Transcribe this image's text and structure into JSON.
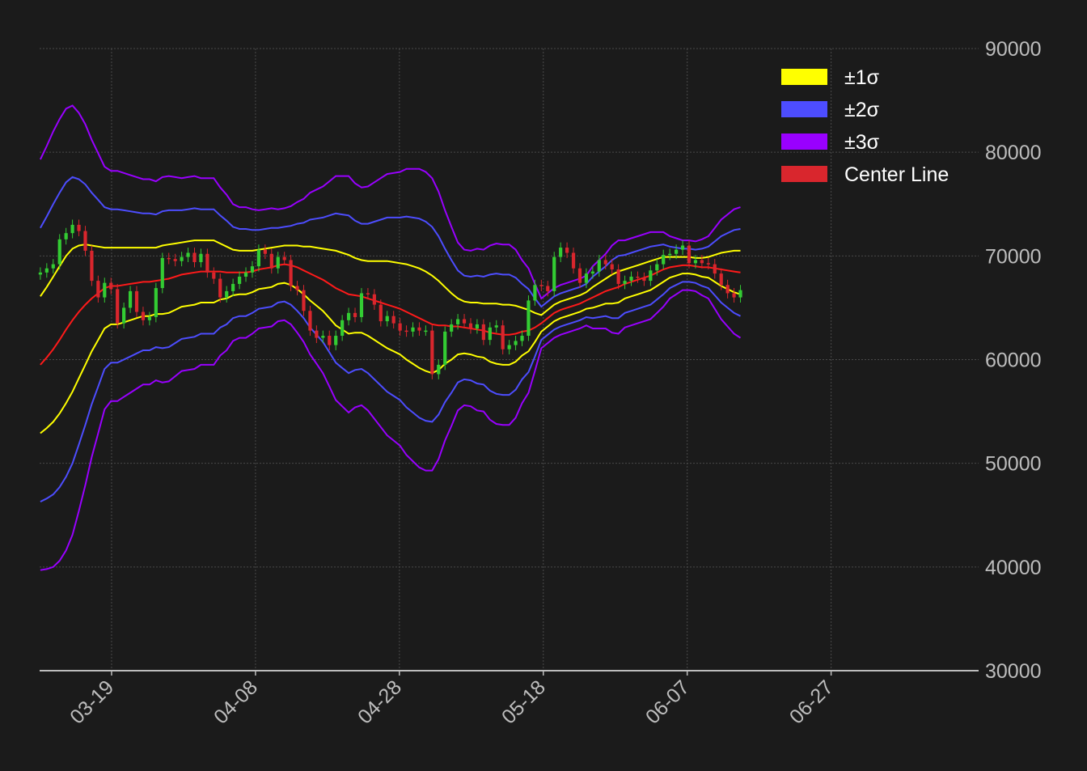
{
  "chart_data": {
    "type": "candlestick",
    "title": "",
    "xlabel": "",
    "ylabel": "",
    "y_axis_position": "right",
    "ylim": [
      30000,
      90000
    ],
    "yticks": [
      30000,
      40000,
      50000,
      60000,
      70000,
      80000,
      90000
    ],
    "ytick_labels": [
      "30000",
      "40000",
      "50000",
      "60000",
      "70000",
      "80000",
      "90000"
    ],
    "xlim": [
      "03-09",
      "07-12"
    ],
    "xtick_labels": [
      "03-19",
      "04-08",
      "04-28",
      "05-18",
      "06-07",
      "06-27"
    ],
    "xtick_days_from_start": [
      10,
      30,
      50,
      70,
      90,
      110
    ],
    "x_day_range": [
      0,
      130.5
    ],
    "grid": true,
    "legend_position": "top-right",
    "colors": {
      "up": "#33cc33",
      "down": "#d9262d",
      "band1": "#ffff00",
      "band2": "#4d4dff",
      "band3": "#9900ff",
      "center": "#ff1a1a",
      "background": "#1b1b1b",
      "grid": "#4a4a4a",
      "axis": "#bdbdbd"
    },
    "candle_close": [
      68400,
      68800,
      69200,
      71600,
      72200,
      73000,
      72400,
      70500,
      67600,
      66000,
      67400,
      66800,
      63500,
      65000,
      66600,
      64600,
      63800,
      64100,
      66900,
      69800,
      69700,
      69500,
      69900,
      70300,
      69400,
      70200,
      68400,
      67800,
      66000,
      66600,
      67300,
      68000,
      68400,
      69000,
      70600,
      70200,
      68800,
      69900,
      69600,
      67100,
      66700,
      64700,
      62800,
      62100,
      62300,
      61400,
      62300,
      63800,
      64500,
      64100,
      66400,
      66300,
      65300,
      63700,
      64200,
      63500,
      62800,
      62700,
      63100,
      62800,
      62800,
      58600,
      59500,
      62700,
      63400,
      63900,
      63500,
      63000,
      63400,
      61900,
      63100,
      63300,
      61000,
      61400,
      61800,
      62300,
      65700,
      67200,
      67100,
      66600,
      69900,
      70800,
      70300,
      68800,
      67400,
      68300,
      68500,
      69600,
      69200,
      68700,
      67300,
      67600,
      68000,
      67900,
      67600,
      68600,
      69200,
      70100,
      70200,
      70600,
      71000,
      69300,
      69600,
      69300,
      69200,
      68300,
      67200,
      66400,
      66000,
      66700
    ],
    "center_line": [
      59500,
      60200,
      61000,
      61900,
      62900,
      63800,
      64600,
      65300,
      65900,
      66400,
      66900,
      67100,
      67100,
      67200,
      67300,
      67400,
      67500,
      67500,
      67600,
      67700,
      67800,
      68000,
      68200,
      68300,
      68400,
      68500,
      68500,
      68500,
      68500,
      68400,
      68400,
      68400,
      68400,
      68500,
      68700,
      68800,
      68900,
      69100,
      69200,
      69100,
      68900,
      68600,
      68300,
      68000,
      67700,
      67300,
      66900,
      66600,
      66300,
      66200,
      66100,
      65900,
      65700,
      65500,
      65300,
      65100,
      64900,
      64600,
      64300,
      64000,
      63700,
      63400,
      63300,
      63300,
      63200,
      63200,
      63100,
      63000,
      62900,
      62800,
      62600,
      62500,
      62400,
      62400,
      62500,
      62700,
      62800,
      63100,
      63500,
      64000,
      64500,
      64800,
      65000,
      65200,
      65400,
      65700,
      66000,
      66300,
      66600,
      66800,
      67000,
      67300,
      67500,
      67700,
      67900,
      68100,
      68400,
      68700,
      68900,
      69000,
      69100,
      69100,
      69000,
      68900,
      68900,
      68800,
      68700,
      68600,
      68500,
      68400
    ],
    "band_1sigma_upper": [
      66100,
      67000,
      68000,
      69000,
      70000,
      70700,
      71000,
      71100,
      71000,
      70900,
      70800,
      70800,
      70800,
      70800,
      70800,
      70800,
      70800,
      70800,
      70800,
      71000,
      71100,
      71200,
      71300,
      71400,
      71500,
      71500,
      71500,
      71500,
      71200,
      70900,
      70600,
      70500,
      70500,
      70500,
      70600,
      70700,
      70800,
      70900,
      71000,
      71000,
      71000,
      70900,
      70900,
      70800,
      70700,
      70600,
      70500,
      70300,
      70100,
      69800,
      69600,
      69500,
      69500,
      69500,
      69500,
      69400,
      69300,
      69200,
      69000,
      68800,
      68500,
      68100,
      67600,
      67000,
      66400,
      65900,
      65600,
      65500,
      65500,
      65400,
      65400,
      65400,
      65300,
      65300,
      65200,
      65000,
      64800,
      64500,
      64100,
      64000,
      64300,
      64700,
      65000,
      65400,
      66000,
      66500,
      67000,
      67400,
      67800,
      68200,
      68500,
      68700,
      68900,
      69100,
      69300,
      69500,
      69700,
      69900,
      69900,
      69900,
      69900,
      69900,
      69800,
      69800,
      69900,
      70100,
      70300,
      70400,
      70500,
      70500,
      70400,
      70300,
      70200,
      70100,
      70100,
      70100,
      70000
    ],
    "_comment": "",
    "band_1sigma_lower": [
      52500,
      53300,
      54100,
      55100,
      56300,
      57700,
      59300,
      60900,
      62300,
      63400,
      63600,
      63900,
      64300,
      64500,
      64500,
      64500,
      64900,
      65200,
      65300,
      65300,
      65400,
      65400,
      65400,
      65400,
      65300,
      65200,
      65200,
      65200,
      65300,
      65300,
      65300,
      65600,
      66000,
      66500,
      67200,
      67000,
      66500,
      65700,
      64700,
      64100,
      63800,
      63700,
      63800,
      63900,
      63900,
      63700,
      63500,
      63300,
      63100,
      62900,
      62800,
      62500,
      62000,
      61500,
      61300,
      61300,
      61300,
      61300,
      61300,
      61300,
      61300,
      61200,
      61000,
      60900,
      60700,
      60600,
      60500,
      60500,
      60500,
      60400,
      60400,
      60400,
      60400,
      60900,
      61300,
      61500,
      61700,
      61800,
      62000,
      62300,
      62700,
      63100,
      63500,
      64300,
      65200,
      66200,
      66700,
      67000,
      67400,
      67700,
      67900,
      68000,
      67900,
      67800,
      67500,
      67300,
      67100,
      66900
    ]
  },
  "legend": {
    "items": [
      {
        "label": "±1σ",
        "color": "#ffff00"
      },
      {
        "label": "±2σ",
        "color": "#4d4dff"
      },
      {
        "label": "±3σ",
        "color": "#9900ff"
      },
      {
        "label": "Center Line",
        "color": "#d9262d"
      }
    ]
  }
}
